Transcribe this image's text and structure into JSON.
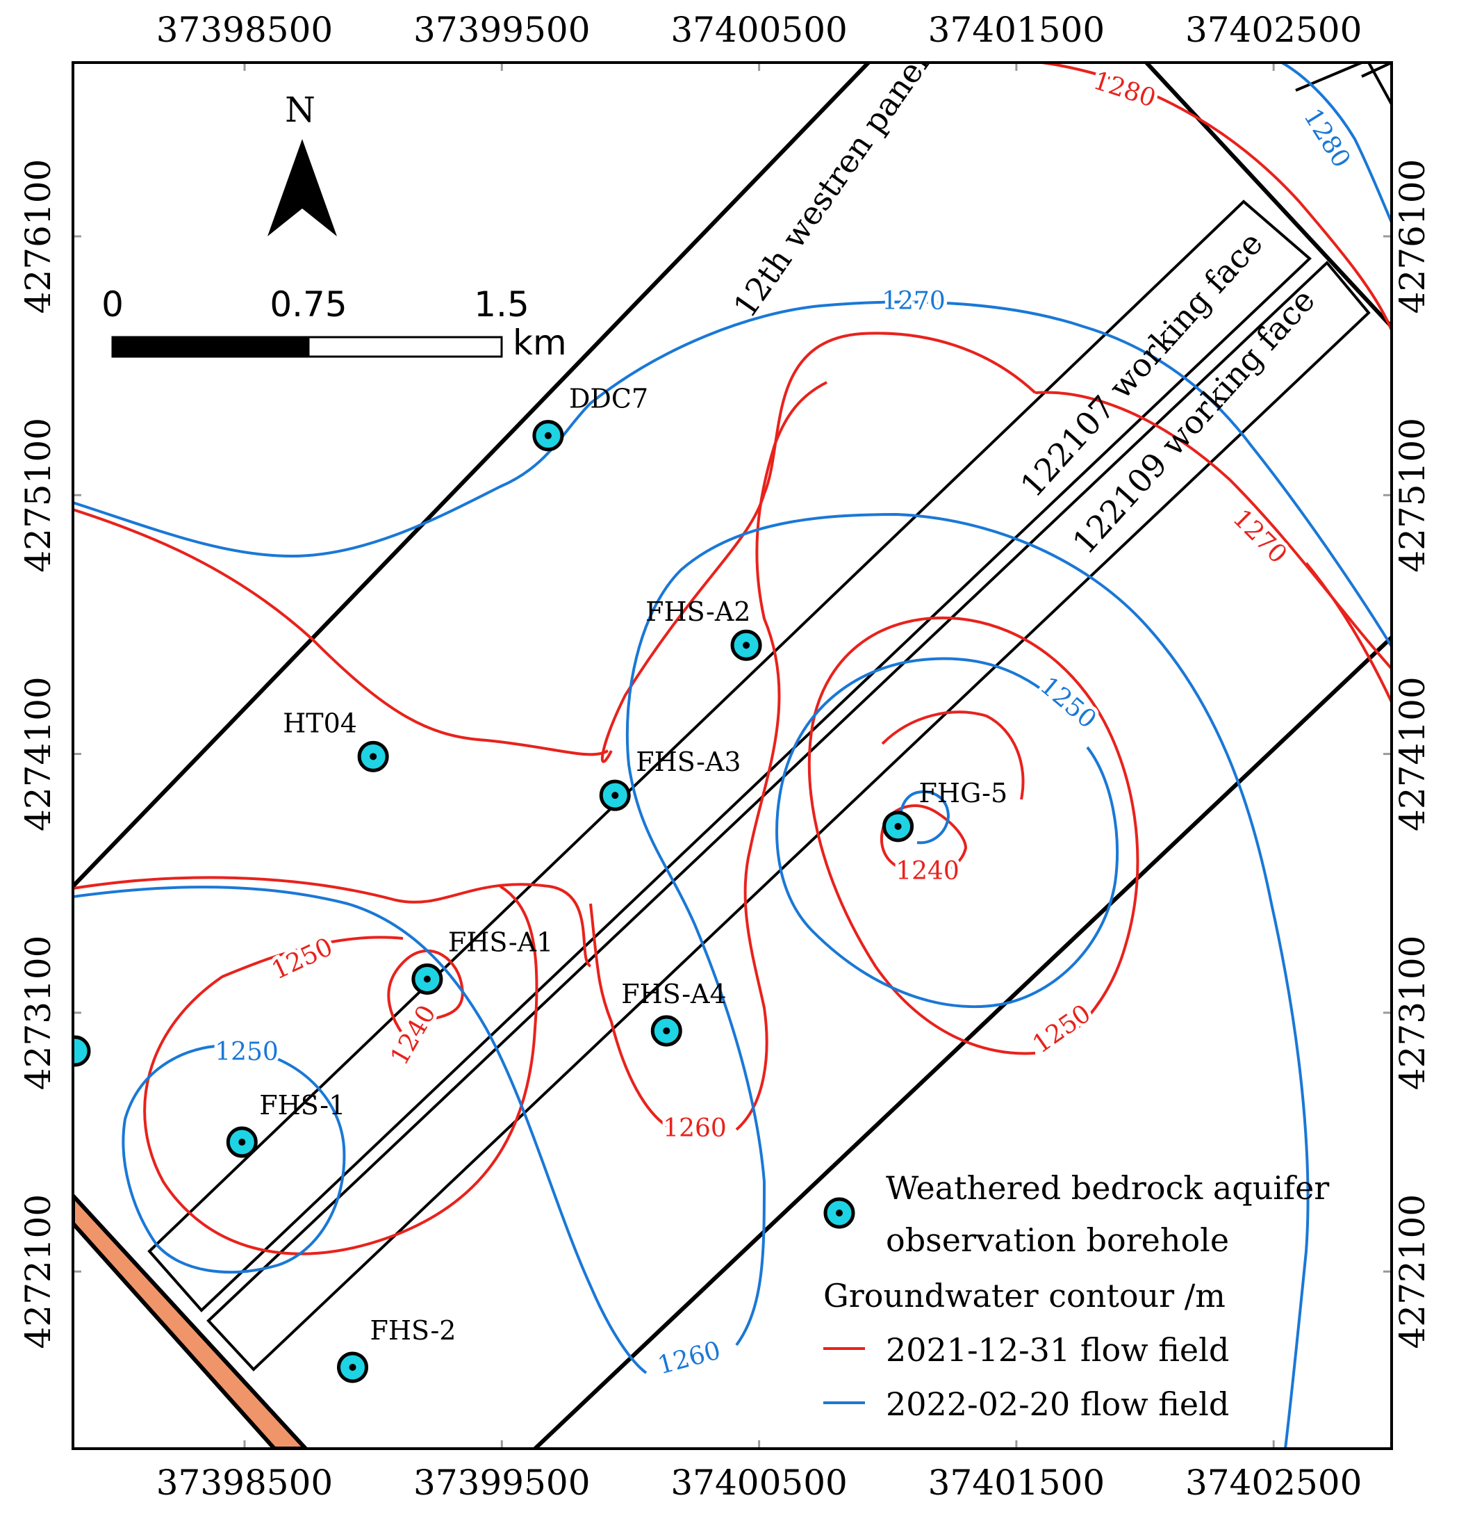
{
  "axes": {
    "x_ticks": [
      "37398500",
      "37399500",
      "37400500",
      "37401500",
      "37402500"
    ],
    "y_ticks": [
      "4276100",
      "4275100",
      "4274100",
      "4273100",
      "4272100"
    ]
  },
  "north_arrow": {
    "label": "N"
  },
  "scale_bar": {
    "labels": [
      "0",
      "0.75",
      "1.5"
    ],
    "unit": "km"
  },
  "panels": {
    "western_panel": "12th westren panel",
    "face_122107": "122107 working face",
    "face_122109": "122109 working face"
  },
  "boreholes": [
    {
      "name": "DDC7",
      "x": 37399680,
      "y": 4275330
    },
    {
      "name": "FHS-A2",
      "x": 37400450,
      "y": 4274520
    },
    {
      "name": "HT04",
      "x": 37399000,
      "y": 4274090
    },
    {
      "name": "FHS-A3",
      "x": 37399940,
      "y": 4273940
    },
    {
      "name": "FHG-5",
      "x": 37401040,
      "y": 4273820
    },
    {
      "name": "FHS-A1",
      "x": 37399210,
      "y": 4273230
    },
    {
      "name": "FHS-A4",
      "x": 37400140,
      "y": 4273030
    },
    {
      "name": "FHS-1",
      "x": 37398490,
      "y": 4272600
    },
    {
      "name": "FHS-2",
      "x": 37398920,
      "y": 4271730
    }
  ],
  "contours": {
    "red_2021": {
      "color": "#e8221c",
      "labels": [
        "1280",
        "1270",
        "1250",
        "1240",
        "1260",
        "1240",
        "1250"
      ]
    },
    "blue_2022": {
      "color": "#1a78d6",
      "labels": [
        "1280",
        "1270",
        "1250",
        "1250",
        "1260"
      ]
    }
  },
  "legend": {
    "borehole_line1": "Weathered bedrock aquifer",
    "borehole_line2": "observation borehole",
    "contour_title": "Groundwater contour /m",
    "red_label": "2021-12-31 flow field",
    "blue_label": "2022-02-20 flow field"
  },
  "colors": {
    "borehole_fill": "#1ed3e3",
    "fault_zone": "#f0956a"
  }
}
